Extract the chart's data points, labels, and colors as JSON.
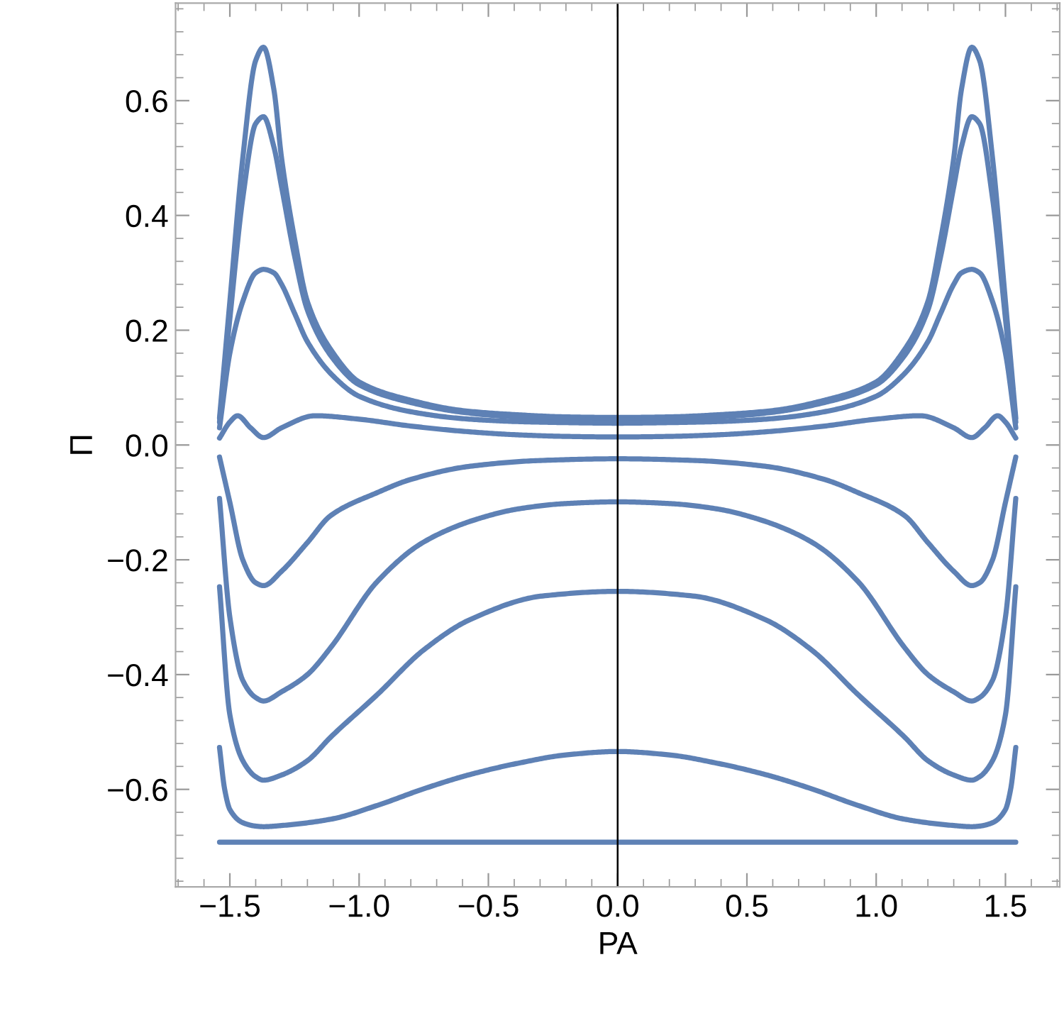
{
  "chart_data": {
    "type": "line",
    "xlabel": "PA",
    "ylabel": "Π",
    "xlim": [
      -1.71,
      1.71
    ],
    "ylim": [
      -0.77,
      0.77
    ],
    "xticks": [
      {
        "value": -1.5,
        "label": "−1.5"
      },
      {
        "value": -1.0,
        "label": "−1.0"
      },
      {
        "value": -0.5,
        "label": "−0.5"
      },
      {
        "value": 0,
        "label": "0.0"
      },
      {
        "value": 0.5,
        "label": "0.5"
      },
      {
        "value": 1.0,
        "label": "1.0"
      },
      {
        "value": 1.5,
        "label": "1.5"
      }
    ],
    "yticks": [
      {
        "value": -0.6,
        "label": "−0.6"
      },
      {
        "value": -0.4,
        "label": "−0.4"
      },
      {
        "value": -0.2,
        "label": "−0.2"
      },
      {
        "value": 0,
        "label": "0.0"
      },
      {
        "value": 0.2,
        "label": "0.2"
      },
      {
        "value": 0.4,
        "label": "0.4"
      },
      {
        "value": 0.6,
        "label": "0.6"
      }
    ],
    "ref_lines": [
      {
        "axis": "x",
        "value": 0,
        "color": "#000000"
      }
    ],
    "series": [
      {
        "color": "#5e81b5",
        "x": [
          -1.54,
          -1.5,
          -1.45,
          -1.4,
          -1.37,
          -1.33,
          -1.3,
          -1.25,
          -1.2,
          -1.1,
          -1.0,
          -0.8,
          -0.6,
          -0.4,
          -0.2,
          0,
          0.2,
          0.4,
          0.6,
          0.8,
          1.0,
          1.1,
          1.2,
          1.25,
          1.3,
          1.33,
          1.37,
          1.4,
          1.45,
          1.5,
          1.54
        ],
        "values": [
          0.047,
          0.25,
          0.5,
          0.67,
          0.693,
          0.62,
          0.5,
          0.36,
          0.25,
          0.16,
          0.11,
          0.078,
          0.06,
          0.053,
          0.049,
          0.048,
          0.049,
          0.053,
          0.06,
          0.078,
          0.11,
          0.16,
          0.25,
          0.36,
          0.5,
          0.62,
          0.693,
          0.67,
          0.5,
          0.25,
          0.047
        ]
      },
      {
        "color": "#5e81b5",
        "x": [
          -1.54,
          -1.5,
          -1.45,
          -1.4,
          -1.37,
          -1.33,
          -1.3,
          -1.25,
          -1.2,
          -1.1,
          -1.0,
          -0.8,
          -0.6,
          -0.4,
          -0.2,
          0,
          0.2,
          0.4,
          0.6,
          0.8,
          1.0,
          1.1,
          1.2,
          1.25,
          1.3,
          1.33,
          1.37,
          1.4,
          1.45,
          1.5,
          1.54
        ],
        "values": [
          0.04,
          0.22,
          0.43,
          0.56,
          0.572,
          0.52,
          0.45,
          0.33,
          0.235,
          0.15,
          0.105,
          0.074,
          0.057,
          0.049,
          0.045,
          0.043,
          0.045,
          0.049,
          0.057,
          0.074,
          0.105,
          0.15,
          0.235,
          0.33,
          0.45,
          0.52,
          0.572,
          0.56,
          0.43,
          0.22,
          0.04
        ]
      },
      {
        "color": "#5e81b5",
        "x": [
          -1.54,
          -1.5,
          -1.45,
          -1.4,
          -1.37,
          -1.33,
          -1.3,
          -1.25,
          -1.2,
          -1.1,
          -1.0,
          -0.8,
          -0.6,
          -0.4,
          -0.2,
          0,
          0.2,
          0.4,
          0.6,
          0.8,
          1.0,
          1.1,
          1.2,
          1.25,
          1.3,
          1.33,
          1.37,
          1.4,
          1.45,
          1.5,
          1.54
        ],
        "values": [
          0.03,
          0.16,
          0.25,
          0.3,
          0.306,
          0.3,
          0.28,
          0.23,
          0.18,
          0.12,
          0.085,
          0.058,
          0.046,
          0.041,
          0.039,
          0.038,
          0.039,
          0.041,
          0.046,
          0.058,
          0.085,
          0.12,
          0.18,
          0.23,
          0.28,
          0.3,
          0.306,
          0.3,
          0.25,
          0.16,
          0.03
        ]
      },
      {
        "color": "#5e81b5",
        "x": [
          -1.54,
          -1.5,
          -1.47,
          -1.42,
          -1.37,
          -1.3,
          -1.17,
          -1.0,
          -0.8,
          -0.6,
          -0.4,
          -0.2,
          0,
          0.2,
          0.4,
          0.6,
          0.8,
          1.0,
          1.17,
          1.3,
          1.37,
          1.42,
          1.47,
          1.5,
          1.54
        ],
        "values": [
          0.012,
          0.04,
          0.051,
          0.03,
          0.013,
          0.03,
          0.051,
          0.045,
          0.033,
          0.024,
          0.018,
          0.015,
          0.014,
          0.015,
          0.018,
          0.024,
          0.033,
          0.045,
          0.051,
          0.03,
          0.013,
          0.03,
          0.051,
          0.04,
          0.012
        ]
      },
      {
        "color": "#5e81b5",
        "x": [
          -1.54,
          -1.5,
          -1.45,
          -1.4,
          -1.37,
          -1.3,
          -1.2,
          -1.11,
          -0.93,
          -0.8,
          -0.57,
          -0.3,
          0,
          0.3,
          0.57,
          0.8,
          0.93,
          1.11,
          1.2,
          1.3,
          1.37,
          1.4,
          1.45,
          1.5,
          1.54
        ],
        "values": [
          -0.021,
          -0.1,
          -0.2,
          -0.24,
          -0.245,
          -0.22,
          -0.17,
          -0.123,
          -0.083,
          -0.06,
          -0.037,
          -0.027,
          -0.024,
          -0.027,
          -0.037,
          -0.06,
          -0.083,
          -0.123,
          -0.17,
          -0.22,
          -0.245,
          -0.24,
          -0.2,
          -0.1,
          -0.021
        ]
      },
      {
        "color": "#5e81b5",
        "x": [
          -1.54,
          -1.5,
          -1.45,
          -1.4,
          -1.37,
          -1.3,
          -1.2,
          -1.11,
          -0.93,
          -0.75,
          -0.55,
          -0.38,
          -0.2,
          0,
          0.2,
          0.38,
          0.55,
          0.75,
          0.93,
          1.11,
          1.2,
          1.3,
          1.37,
          1.4,
          1.45,
          1.5,
          1.54
        ],
        "values": [
          -0.093,
          -0.3,
          -0.41,
          -0.44,
          -0.446,
          -0.43,
          -0.4,
          -0.353,
          -0.238,
          -0.169,
          -0.13,
          -0.111,
          -0.102,
          -0.099,
          -0.102,
          -0.111,
          -0.13,
          -0.169,
          -0.238,
          -0.353,
          -0.4,
          -0.43,
          -0.446,
          -0.44,
          -0.41,
          -0.3,
          -0.093
        ]
      },
      {
        "color": "#5e81b5",
        "x": [
          -1.54,
          -1.5,
          -1.45,
          -1.4,
          -1.37,
          -1.3,
          -1.2,
          -1.11,
          -0.93,
          -0.75,
          -0.57,
          -0.29,
          0,
          0.29,
          0.57,
          0.75,
          0.93,
          1.11,
          1.2,
          1.3,
          1.37,
          1.4,
          1.45,
          1.5,
          1.54
        ],
        "values": [
          -0.247,
          -0.47,
          -0.55,
          -0.578,
          -0.584,
          -0.575,
          -0.55,
          -0.509,
          -0.435,
          -0.357,
          -0.304,
          -0.263,
          -0.255,
          -0.263,
          -0.304,
          -0.357,
          -0.435,
          -0.509,
          -0.55,
          -0.575,
          -0.584,
          -0.578,
          -0.55,
          -0.47,
          -0.247
        ]
      },
      {
        "color": "#5e81b5",
        "x": [
          -1.54,
          -1.52,
          -1.5,
          -1.45,
          -1.4,
          -1.37,
          -1.3,
          -1.11,
          -0.93,
          -0.75,
          -0.57,
          -0.38,
          -0.2,
          0,
          0.2,
          0.38,
          0.57,
          0.75,
          0.93,
          1.11,
          1.3,
          1.37,
          1.4,
          1.45,
          1.5,
          1.52,
          1.54
        ],
        "values": [
          -0.527,
          -0.6,
          -0.635,
          -0.658,
          -0.664,
          -0.665,
          -0.663,
          -0.652,
          -0.628,
          -0.599,
          -0.574,
          -0.554,
          -0.54,
          -0.534,
          -0.54,
          -0.554,
          -0.574,
          -0.599,
          -0.628,
          -0.652,
          -0.663,
          -0.665,
          -0.664,
          -0.658,
          -0.635,
          -0.6,
          -0.527
        ]
      },
      {
        "color": "#5e81b5",
        "x": [
          -1.54,
          1.54
        ],
        "values": [
          -0.692,
          -0.692
        ]
      }
    ]
  }
}
